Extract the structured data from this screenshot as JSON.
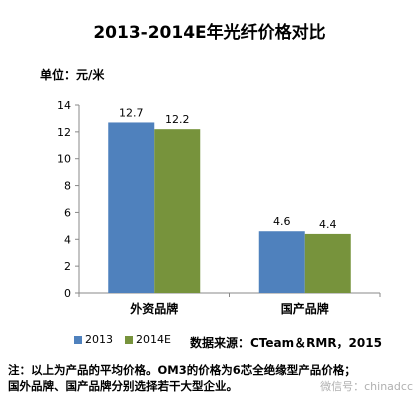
{
  "chart_data": {
    "type": "bar",
    "title": "2013-2014E年光纤价格对比",
    "ylabel": "单位：元/米",
    "categories": [
      "外资品牌",
      "国产品牌"
    ],
    "series": [
      {
        "name": "2013",
        "values": [
          12.7,
          4.6
        ],
        "color": "#4F81BD"
      },
      {
        "name": "2014E",
        "values": [
          12.2,
          4.4
        ],
        "color": "#77933C"
      }
    ],
    "ylim": [
      0,
      14
    ],
    "yticks": [
      0,
      2,
      4,
      6,
      8,
      10,
      12,
      14
    ],
    "legend": "bottom-left",
    "grid": false
  },
  "source": "数据来源：CTeam＆RMR，2015",
  "note_line1": "注：以上为产品的平均价格。OM3的价格为6芯全绝缘型产品价格；",
  "note_line2": "国外品牌、国产品牌分别选择若干大型企业。",
  "watermark": "微信号：chinadcc"
}
